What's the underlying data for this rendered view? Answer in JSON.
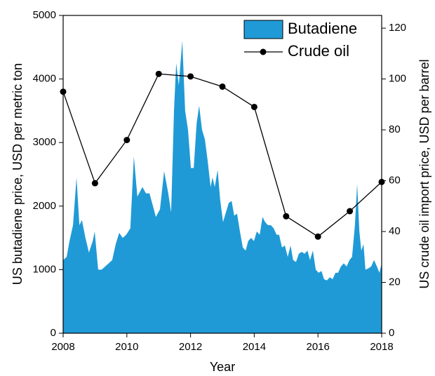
{
  "chart_data": {
    "type": "area",
    "xlabel": "Year",
    "ylabel": "US butadiene price, USD per metric ton",
    "y2label": "US crude oil import price, USD per barrel",
    "xlim": [
      2008,
      2018
    ],
    "xticks": [
      2008,
      2010,
      2012,
      2014,
      2016,
      2018
    ],
    "ylim": [
      0,
      5000
    ],
    "yticks": [
      0,
      1000,
      2000,
      3000,
      4000,
      5000
    ],
    "y2lim": [
      0,
      125
    ],
    "y2ticks": [
      0,
      20,
      40,
      60,
      80,
      100,
      120
    ],
    "legend": "upper right",
    "series": [
      {
        "name": "Butadiene",
        "type": "area",
        "color": "#1f9ad6",
        "x": [
          2008.0,
          2008.11,
          2008.2,
          2008.31,
          2008.42,
          2008.51,
          2008.59,
          2008.7,
          2008.81,
          2008.93,
          2008.99,
          2009.1,
          2009.21,
          2009.32,
          2009.43,
          2009.54,
          2009.65,
          2009.76,
          2009.87,
          2009.98,
          2010.11,
          2010.22,
          2010.33,
          2010.49,
          2010.6,
          2010.71,
          2010.82,
          2010.91,
          2011.04,
          2011.17,
          2011.3,
          2011.39,
          2011.48,
          2011.55,
          2011.63,
          2011.74,
          2011.83,
          2011.92,
          2012.01,
          2012.1,
          2012.19,
          2012.27,
          2012.36,
          2012.45,
          2012.54,
          2012.63,
          2012.69,
          2012.76,
          2012.85,
          2012.93,
          2013.02,
          2013.11,
          2013.2,
          2013.29,
          2013.37,
          2013.46,
          2013.55,
          2013.64,
          2013.73,
          2013.81,
          2013.9,
          2013.99,
          2014.08,
          2014.17,
          2014.26,
          2014.34,
          2014.43,
          2014.52,
          2014.61,
          2014.7,
          2014.78,
          2014.87,
          2014.96,
          2015.05,
          2015.14,
          2015.22,
          2015.31,
          2015.4,
          2015.49,
          2015.58,
          2015.67,
          2015.75,
          2015.84,
          2015.93,
          2016.02,
          2016.11,
          2016.19,
          2016.28,
          2016.37,
          2016.46,
          2016.55,
          2016.63,
          2016.72,
          2016.81,
          2016.9,
          2016.99,
          2017.07,
          2017.16,
          2017.23,
          2017.3,
          2017.36,
          2017.43,
          2017.49,
          2017.58,
          2017.67,
          2017.76,
          2017.85,
          2017.93,
          2018.0
        ],
        "values": [
          1150,
          1200,
          1450,
          1700,
          2450,
          1700,
          1780,
          1500,
          1270,
          1450,
          1600,
          1000,
          1000,
          1050,
          1100,
          1150,
          1400,
          1580,
          1500,
          1550,
          1650,
          2780,
          2150,
          2300,
          2200,
          2200,
          2000,
          1830,
          1950,
          2550,
          2200,
          1900,
          3500,
          4250,
          3900,
          4600,
          3500,
          3200,
          2600,
          2600,
          3300,
          3580,
          3200,
          3050,
          2700,
          2300,
          2450,
          2300,
          2570,
          2100,
          1750,
          1900,
          2050,
          2080,
          1850,
          1880,
          1600,
          1350,
          1300,
          1450,
          1500,
          1450,
          1600,
          1550,
          1830,
          1750,
          1700,
          1700,
          1650,
          1550,
          1550,
          1350,
          1380,
          1200,
          1380,
          1150,
          1120,
          1250,
          1280,
          1250,
          1300,
          1150,
          1300,
          1000,
          950,
          980,
          850,
          830,
          880,
          850,
          950,
          950,
          1050,
          1100,
          1050,
          1150,
          1200,
          1700,
          2350,
          1600,
          1300,
          1400,
          1000,
          1020,
          1050,
          1150,
          1050,
          950,
          1100
        ]
      },
      {
        "name": "Crude oil",
        "type": "line",
        "axis": "y2",
        "color": "#000000",
        "x": [
          2008,
          2009,
          2010,
          2011,
          2012,
          2013,
          2014,
          2015,
          2016,
          2017,
          2018
        ],
        "values": [
          95,
          59,
          76,
          102,
          101,
          97,
          89,
          46,
          38,
          48,
          59.5
        ]
      }
    ]
  }
}
